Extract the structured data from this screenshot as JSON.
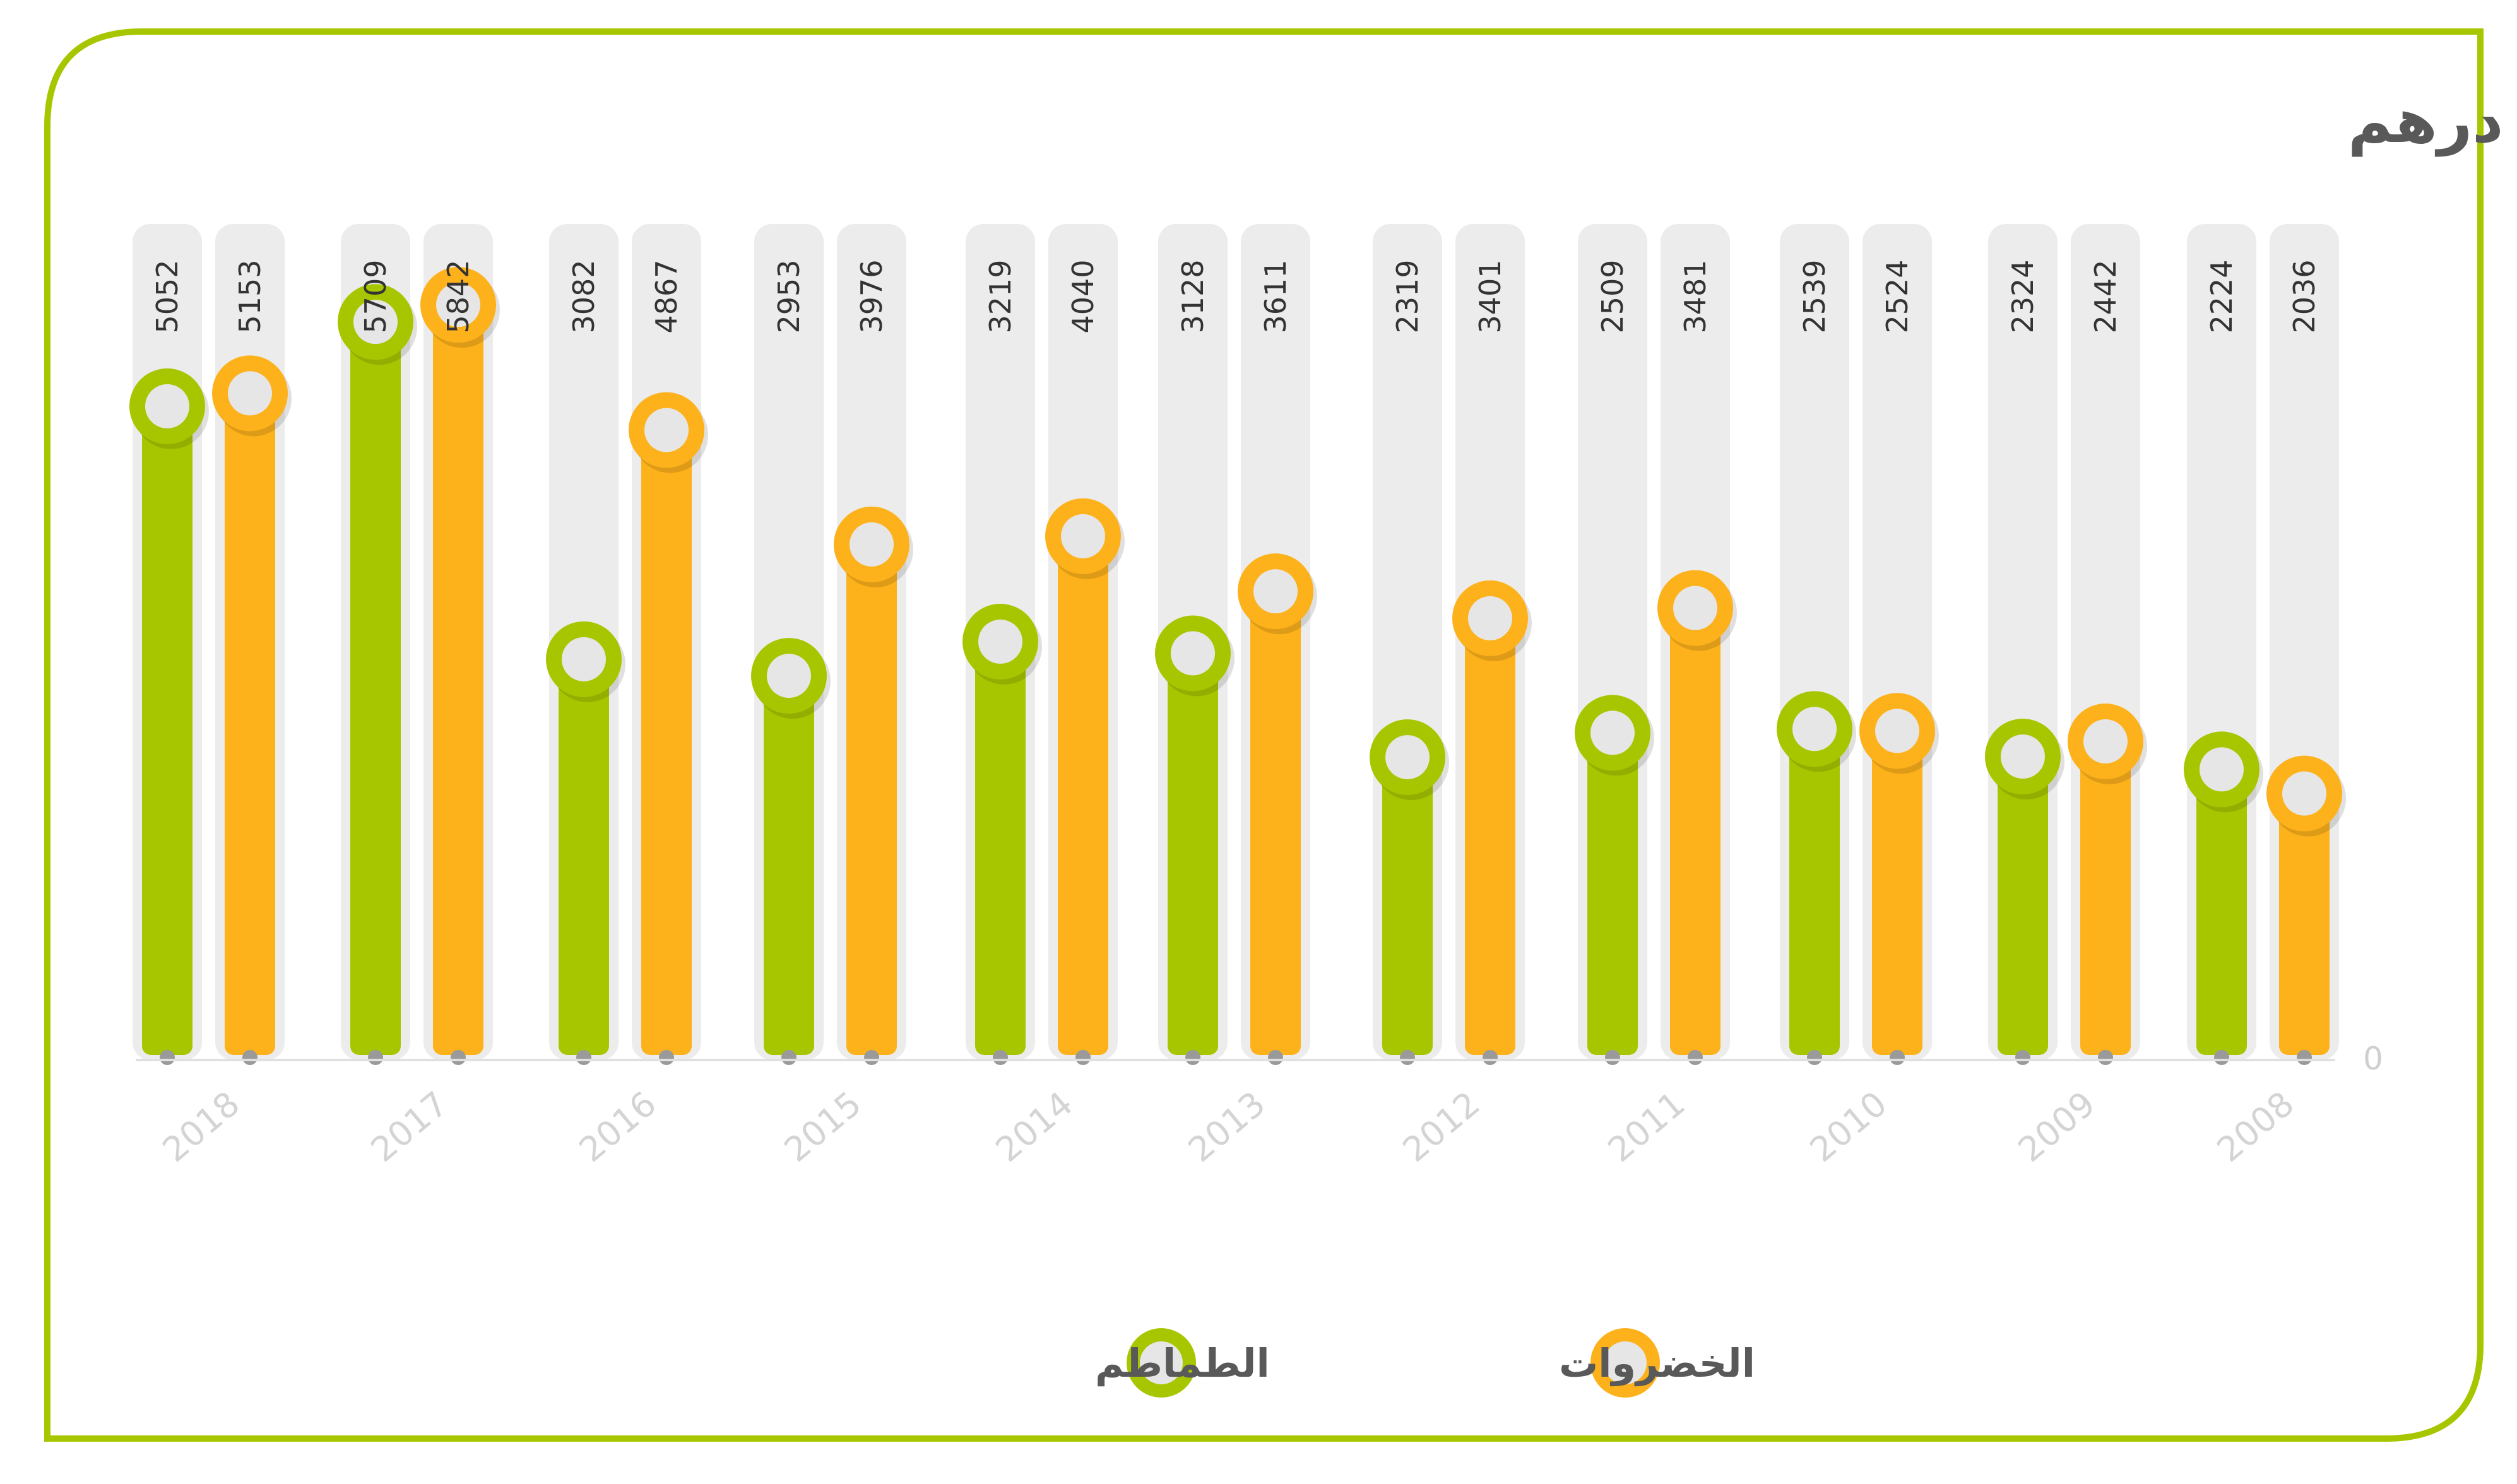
{
  "colors": {
    "tomatoes": "#a8c600",
    "vegetables": "#fdb11b",
    "track": "#ececec",
    "frame": "#a8c600"
  },
  "chart_data": {
    "type": "bar",
    "title": "قيمة الصادرات بالمليون درهم",
    "categories": [
      "2018",
      "2017",
      "2016",
      "2015",
      "2014",
      "2013",
      "2012",
      "2011",
      "2010",
      "2009",
      "2008"
    ],
    "series": [
      {
        "name": "الطماطم",
        "values": [
          5052,
          5709,
          3082,
          2953,
          3219,
          3128,
          2319,
          2509,
          2539,
          2324,
          2224
        ]
      },
      {
        "name": "الخضروات",
        "values": [
          5153,
          5842,
          4867,
          3976,
          4040,
          3611,
          3401,
          3481,
          2524,
          2442,
          2036
        ]
      }
    ],
    "y_zero_label": "0",
    "ylim": [
      0,
      7000
    ],
    "legend_position": "bottom",
    "grid": false
  }
}
